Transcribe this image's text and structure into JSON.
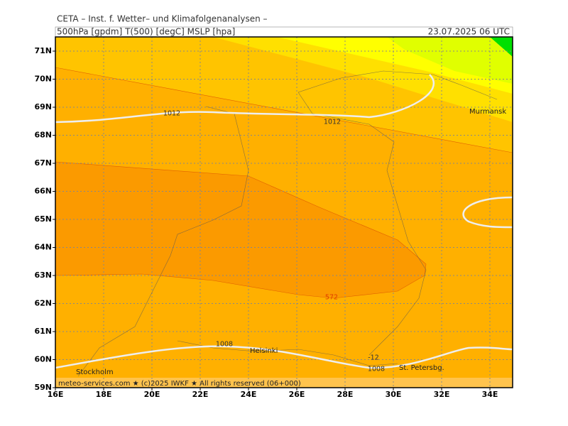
{
  "header": {
    "title": "CETA – Inst. f. Wetter– und Klimafolgenanalysen –",
    "params": "500hPa [gpdm] T(500) [degC] MSLP [hpa]",
    "datetime": "23.07.2025 06 UTC"
  },
  "latitudes": [
    "59N",
    "60N",
    "61N",
    "62N",
    "63N",
    "64N",
    "65N",
    "66N",
    "67N",
    "68N",
    "69N",
    "70N",
    "71N"
  ],
  "longitudes": [
    "16E",
    "18E",
    "20E",
    "22E",
    "24E",
    "26E",
    "28E",
    "30E",
    "32E",
    "34E"
  ],
  "cities": [
    "Murmansk",
    "Helsinki",
    "Stockholm",
    "St. Petersbg."
  ],
  "contour_labels": [
    "1012",
    "1012",
    "1008",
    "1008",
    "572",
    "-12"
  ],
  "footer": "meteo-services.com ★ (c)2025 IWKF ★ All rights reserved (06+000)"
}
